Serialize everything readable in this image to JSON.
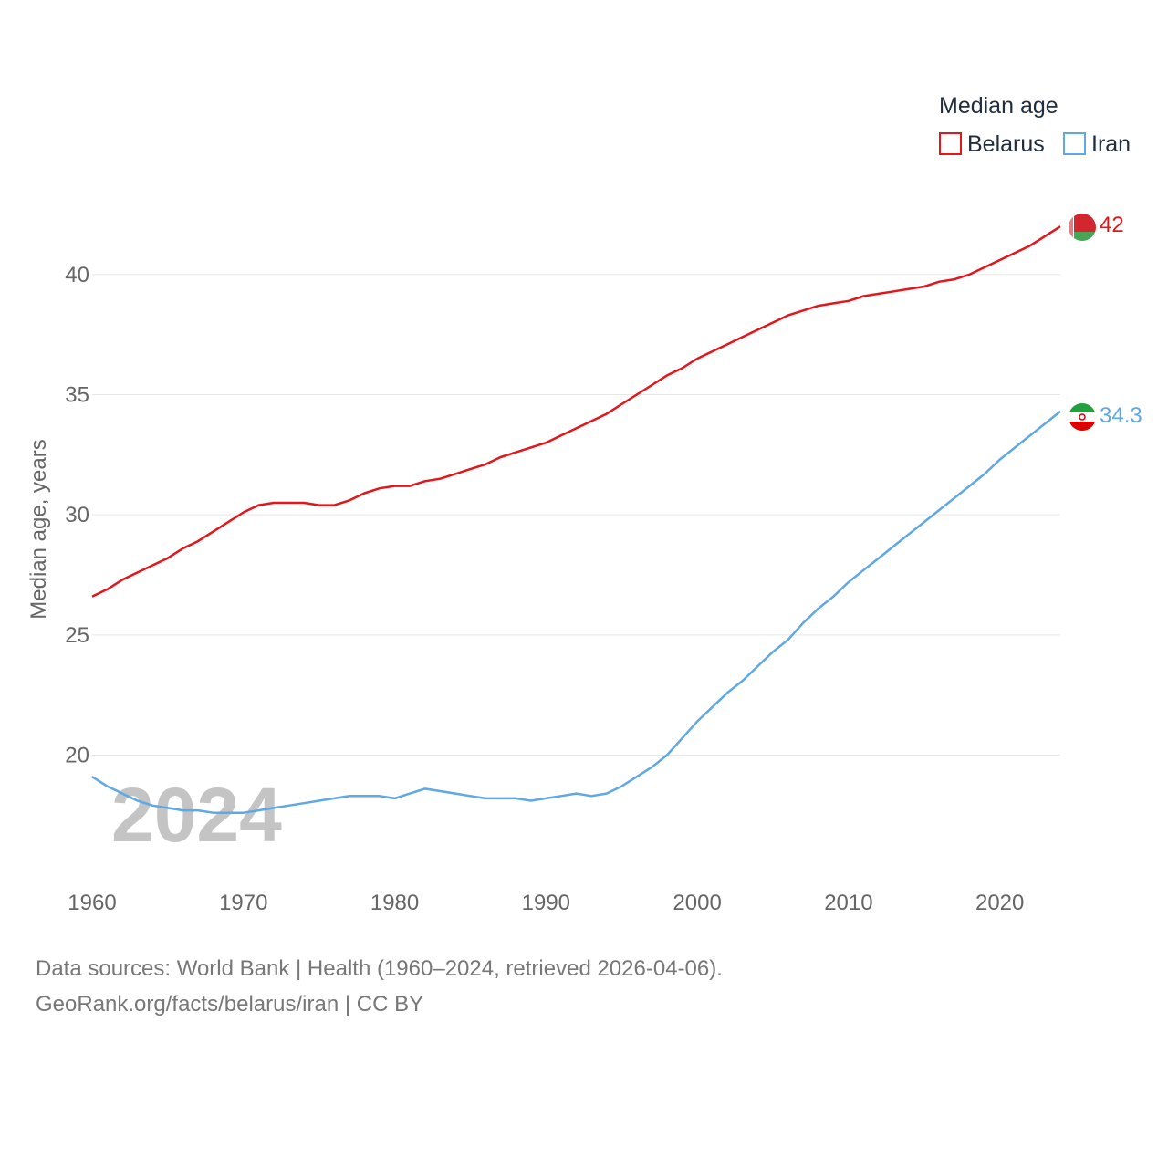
{
  "legend": {
    "title": "Median age",
    "items": [
      {
        "name": "Belarus",
        "color": "#e3161b"
      },
      {
        "name": "Iran",
        "color": "#5fa8e6"
      }
    ]
  },
  "year_watermark": "2024",
  "source": {
    "line1": "Data sources: World Bank | Health (1960–2024, retrieved 2026-04-06).",
    "line2": "GeoRank.org/facts/belarus/iran | CC BY"
  },
  "chart_data": {
    "type": "line",
    "title": "Median age",
    "xlabel": "",
    "ylabel": "Median age, years",
    "xlim": [
      1960,
      2024
    ],
    "ylim": [
      15.5,
      42.5
    ],
    "yticks": [
      20,
      25,
      30,
      35,
      40
    ],
    "xticks": [
      1960,
      1970,
      1980,
      1990,
      2000,
      2010,
      2020
    ],
    "grid": true,
    "legend_position": "top-right",
    "x": [
      1960,
      1961,
      1962,
      1963,
      1964,
      1965,
      1966,
      1967,
      1968,
      1969,
      1970,
      1971,
      1972,
      1973,
      1974,
      1975,
      1976,
      1977,
      1978,
      1979,
      1980,
      1981,
      1982,
      1983,
      1984,
      1985,
      1986,
      1987,
      1988,
      1989,
      1990,
      1991,
      1992,
      1993,
      1994,
      1995,
      1996,
      1997,
      1998,
      1999,
      2000,
      2001,
      2002,
      2003,
      2004,
      2005,
      2006,
      2007,
      2008,
      2009,
      2010,
      2011,
      2012,
      2013,
      2014,
      2015,
      2016,
      2017,
      2018,
      2019,
      2020,
      2021,
      2022,
      2023,
      2024
    ],
    "series": [
      {
        "name": "Belarus",
        "color": "#e3161b",
        "end_label": "42",
        "values": [
          26.6,
          26.9,
          27.3,
          27.6,
          27.9,
          28.2,
          28.6,
          28.9,
          29.3,
          29.7,
          30.1,
          30.4,
          30.5,
          30.5,
          30.5,
          30.4,
          30.4,
          30.6,
          30.9,
          31.1,
          31.2,
          31.2,
          31.4,
          31.5,
          31.7,
          31.9,
          32.1,
          32.4,
          32.6,
          32.8,
          33.0,
          33.3,
          33.6,
          33.9,
          34.2,
          34.6,
          35.0,
          35.4,
          35.8,
          36.1,
          36.5,
          36.8,
          37.1,
          37.4,
          37.7,
          38.0,
          38.3,
          38.5,
          38.7,
          38.8,
          38.9,
          39.1,
          39.2,
          39.3,
          39.4,
          39.5,
          39.7,
          39.8,
          40.0,
          40.3,
          40.6,
          40.9,
          41.2,
          41.6,
          42.0
        ]
      },
      {
        "name": "Iran",
        "color": "#5fa8e6",
        "end_label": "34.3",
        "values": [
          19.1,
          18.7,
          18.4,
          18.1,
          17.9,
          17.8,
          17.7,
          17.7,
          17.6,
          17.6,
          17.6,
          17.7,
          17.8,
          17.9,
          18.0,
          18.1,
          18.2,
          18.3,
          18.3,
          18.3,
          18.2,
          18.4,
          18.6,
          18.5,
          18.4,
          18.3,
          18.2,
          18.2,
          18.2,
          18.1,
          18.2,
          18.3,
          18.4,
          18.3,
          18.4,
          18.7,
          19.1,
          19.5,
          20.0,
          20.7,
          21.4,
          22.0,
          22.6,
          23.1,
          23.7,
          24.3,
          24.8,
          25.5,
          26.1,
          26.6,
          27.2,
          27.7,
          28.2,
          28.7,
          29.2,
          29.7,
          30.2,
          30.7,
          31.2,
          31.7,
          32.3,
          32.8,
          33.3,
          33.8,
          34.3
        ]
      }
    ]
  }
}
